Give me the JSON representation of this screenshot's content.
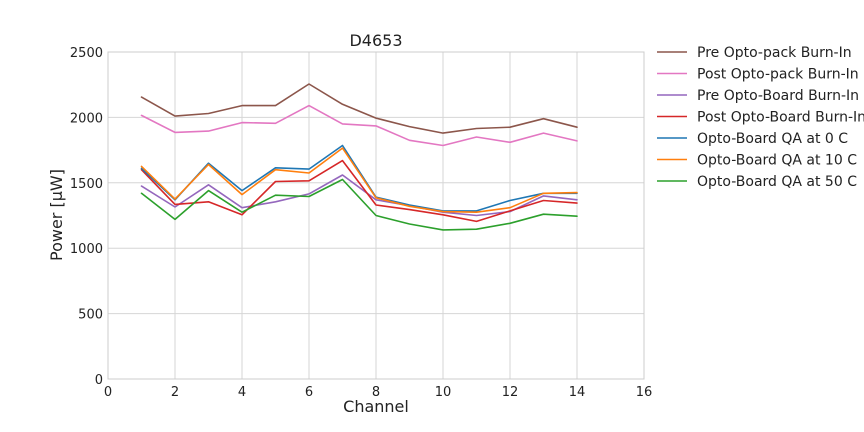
{
  "chart_data": {
    "type": "line",
    "title": "D4653",
    "xlabel": "Channel",
    "ylabel": "Power [μW]",
    "xlim": [
      0,
      16
    ],
    "ylim": [
      0,
      2500
    ],
    "xticks": [
      0,
      2,
      4,
      6,
      8,
      10,
      12,
      14,
      16
    ],
    "yticks": [
      0,
      500,
      1000,
      1500,
      2000,
      2500
    ],
    "grid": true,
    "legend_position": "outside-right",
    "x": [
      1,
      2,
      3,
      4,
      5,
      6,
      7,
      8,
      9,
      10,
      11,
      12,
      13,
      14
    ],
    "series": [
      {
        "name": "Pre Opto-pack Burn-In",
        "color": "#8c564b",
        "values": [
          2155,
          2010,
          2030,
          2090,
          2090,
          2255,
          2100,
          1995,
          1930,
          1880,
          1915,
          1925,
          1990,
          1925
        ]
      },
      {
        "name": "Post Opto-pack Burn-In",
        "color": "#e377c2",
        "values": [
          2015,
          1885,
          1895,
          1960,
          1955,
          2090,
          1950,
          1935,
          1825,
          1785,
          1850,
          1810,
          1880,
          1820
        ]
      },
      {
        "name": "Pre Opto-Board Burn-In",
        "color": "#9467bd",
        "values": [
          1475,
          1315,
          1485,
          1310,
          1355,
          1415,
          1560,
          1370,
          1325,
          1275,
          1250,
          1280,
          1400,
          1370
        ]
      },
      {
        "name": "Post Opto-Board Burn-In",
        "color": "#d62728",
        "values": [
          1600,
          1335,
          1355,
          1255,
          1510,
          1515,
          1670,
          1330,
          1295,
          1255,
          1205,
          1285,
          1365,
          1345
        ]
      },
      {
        "name": "Opto-Board QA at 0 C",
        "color": "#1f77b4",
        "values": [
          1610,
          1370,
          1650,
          1440,
          1615,
          1605,
          1785,
          1390,
          1330,
          1285,
          1285,
          1365,
          1420,
          1420
        ]
      },
      {
        "name": "Opto-Board QA at 10 C",
        "color": "#ff7f0e",
        "values": [
          1625,
          1375,
          1640,
          1410,
          1600,
          1575,
          1765,
          1385,
          1320,
          1280,
          1275,
          1310,
          1420,
          1425
        ]
      },
      {
        "name": "Opto-Board QA at 50 C",
        "color": "#2ca02c",
        "values": [
          1420,
          1220,
          1440,
          1275,
          1405,
          1395,
          1525,
          1250,
          1185,
          1140,
          1145,
          1190,
          1260,
          1245
        ]
      }
    ]
  }
}
